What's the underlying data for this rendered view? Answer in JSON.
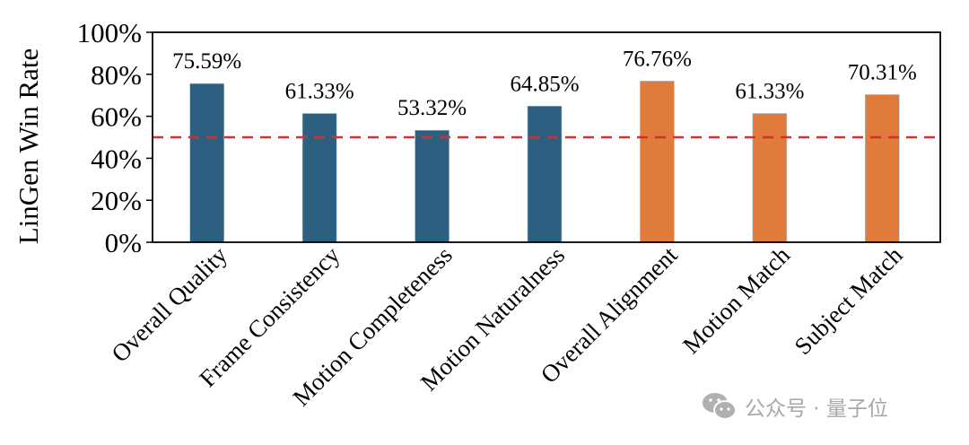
{
  "chart_data": {
    "type": "bar",
    "title": "",
    "xlabel": "",
    "ylabel": "LinGen Win Rate",
    "ylim": [
      0,
      100
    ],
    "yticks": [
      "0%",
      "20%",
      "40%",
      "60%",
      "80%",
      "100%"
    ],
    "grid": false,
    "categories": [
      "Overall Quality",
      "Frame Consistency",
      "Motion Completeness",
      "Motion Naturalness",
      "Overall Alignment",
      "Motion Match",
      "Subject Match"
    ],
    "values": [
      75.59,
      61.33,
      53.32,
      64.85,
      76.76,
      61.33,
      70.31
    ],
    "data_labels": [
      "75.59%",
      "61.33%",
      "53.32%",
      "64.85%",
      "76.76%",
      "61.33%",
      "70.31%"
    ],
    "bar_colors": [
      "#2d5f80",
      "#2d5f80",
      "#2d5f80",
      "#2d5f80",
      "#e07b3c",
      "#e07b3c",
      "#e07b3c"
    ],
    "reference_line": {
      "value": 50,
      "style": "dashed",
      "color": "#d0312d"
    }
  },
  "watermark": {
    "icon": "wechat-icon",
    "text": "公众号 · 量子位"
  }
}
